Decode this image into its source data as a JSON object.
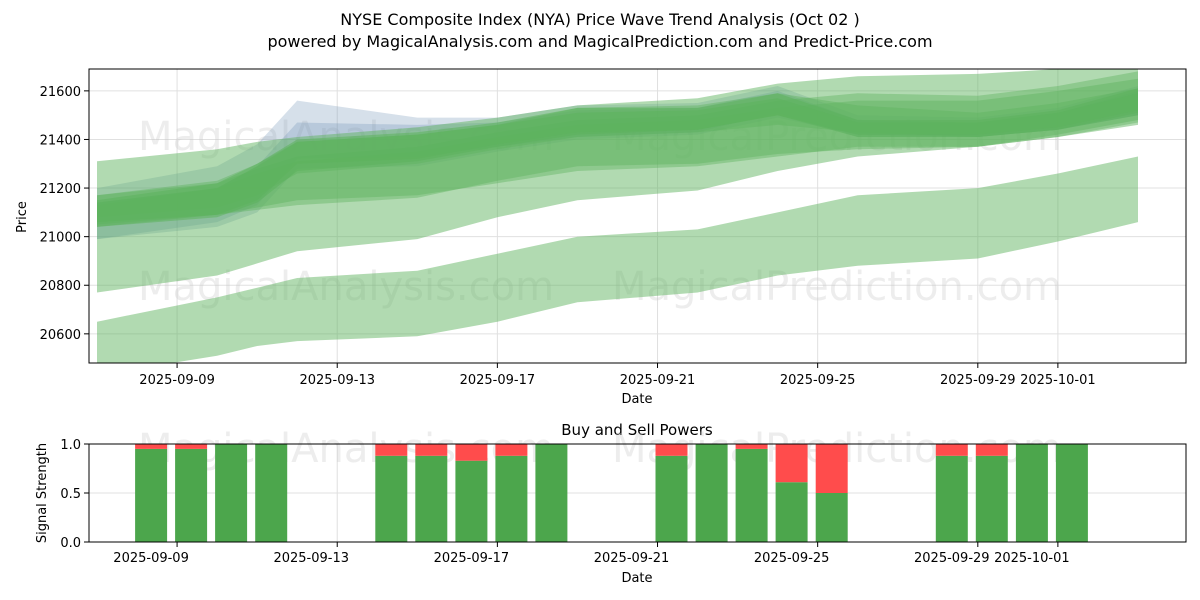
{
  "chart_data": [
    {
      "type": "area",
      "title": "NYSE Composite Index (NYA) Price Wave Trend Analysis (Oct 02 )",
      "subtitle": "powered by MagicalAnalysis.com and MagicalPrediction.com and Predict-Price.com",
      "xlabel": "Date",
      "ylabel": "Price",
      "ylim": [
        20480,
        21690
      ],
      "xlim": [
        "2025-09-06.8",
        "2025-10-04.2"
      ],
      "x_ticks": [
        "2025-09-09",
        "2025-09-13",
        "2025-09-17",
        "2025-09-21",
        "2025-09-25",
        "2025-09-29",
        "2025-10-01"
      ],
      "y_ticks": [
        20600,
        20800,
        21000,
        21200,
        21400,
        21600
      ],
      "grid": true,
      "watermarks": [
        "MagicalAnalysis.com",
        "MagicalPrediction.com"
      ],
      "band_dates": [
        "2025-09-07",
        "2025-09-10",
        "2025-09-11",
        "2025-09-12",
        "2025-09-15",
        "2025-09-17",
        "2025-09-19",
        "2025-09-22",
        "2025-09-24",
        "2025-09-26",
        "2025-09-29",
        "2025-10-01",
        "2025-10-03"
      ],
      "bands": [
        {
          "name": "wide-upper",
          "low": [
            20770,
            20840,
            20890,
            20940,
            20990,
            21080,
            21150,
            21190,
            21270,
            21330,
            21370,
            21410,
            21460
          ],
          "high": [
            21310,
            21360,
            21390,
            21410,
            21450,
            21490,
            21540,
            21570,
            21630,
            21660,
            21670,
            21690,
            21690
          ]
        },
        {
          "name": "wide-lower",
          "low": [
            20430,
            20510,
            20550,
            20570,
            20590,
            20650,
            20730,
            20770,
            20840,
            20880,
            20910,
            20980,
            21060
          ],
          "high": [
            20650,
            20750,
            20790,
            20830,
            20860,
            20930,
            21000,
            21030,
            21100,
            21170,
            21200,
            21260,
            21330
          ]
        },
        {
          "name": "mid-1",
          "low": [
            21040,
            21090,
            21120,
            21150,
            21170,
            21220,
            21270,
            21290,
            21330,
            21370,
            21370,
            21410,
            21470
          ],
          "high": [
            21130,
            21200,
            21260,
            21310,
            21350,
            21410,
            21460,
            21480,
            21530,
            21560,
            21560,
            21600,
            21650
          ]
        },
        {
          "name": "mid-2",
          "low": [
            21050,
            21090,
            21110,
            21130,
            21160,
            21230,
            21290,
            21300,
            21340,
            21360,
            21370,
            21420,
            21480
          ],
          "high": [
            21170,
            21220,
            21280,
            21330,
            21370,
            21430,
            21480,
            21500,
            21560,
            21590,
            21580,
            21620,
            21680
          ]
        },
        {
          "name": "mid-3",
          "low": [
            21080,
            21120,
            21170,
            21260,
            21300,
            21360,
            21410,
            21430,
            21460,
            21430,
            21410,
            21440,
            21500
          ],
          "high": [
            21170,
            21230,
            21300,
            21390,
            21420,
            21460,
            21530,
            21540,
            21590,
            21540,
            21510,
            21550,
            21610
          ]
        },
        {
          "name": "core-1",
          "low": [
            21040,
            21080,
            21140,
            21270,
            21310,
            21370,
            21420,
            21440,
            21500,
            21410,
            21410,
            21440,
            21510
          ],
          "high": [
            21150,
            21220,
            21300,
            21400,
            21430,
            21470,
            21530,
            21530,
            21590,
            21480,
            21480,
            21520,
            21610
          ]
        },
        {
          "name": "core-2",
          "low": [
            21060,
            21090,
            21150,
            21300,
            21320,
            21380,
            21430,
            21440,
            21500,
            21420,
            21420,
            21450,
            21520
          ],
          "high": [
            21140,
            21200,
            21290,
            21390,
            21420,
            21460,
            21510,
            21520,
            21570,
            21470,
            21470,
            21510,
            21590
          ]
        }
      ],
      "ghost_bands": [
        {
          "name": "ghost-1",
          "low": [
            20990,
            21060,
            21130,
            21320,
            21330,
            21370,
            21410,
            21430,
            21510,
            21410,
            21410,
            21440,
            21500
          ],
          "high": [
            21200,
            21290,
            21380,
            21560,
            21490,
            21490,
            21540,
            21550,
            21620,
            21500,
            21490,
            21530,
            21620
          ]
        },
        {
          "name": "ghost-2",
          "low": [
            20990,
            21040,
            21100,
            21280,
            21290,
            21350,
            21400,
            21420,
            21490,
            21420,
            21410,
            21440,
            21500
          ],
          "high": [
            21140,
            21200,
            21290,
            21470,
            21460,
            21470,
            21520,
            21530,
            21600,
            21480,
            21470,
            21510,
            21600
          ]
        }
      ]
    },
    {
      "type": "bar",
      "title": "Buy and Sell Powers",
      "xlabel": "Date",
      "ylabel": "Signal Strength",
      "ylim": [
        0,
        1
      ],
      "y_ticks": [
        "0.0",
        "0.5",
        "1.0"
      ],
      "x_ticks": [
        "2025-09-09",
        "2025-09-13",
        "2025-09-17",
        "2025-09-21",
        "2025-09-25",
        "2025-09-29",
        "2025-10-01"
      ],
      "dates": [
        "2025-09-09",
        "2025-09-10",
        "2025-09-11",
        "2025-09-12",
        "2025-09-15",
        "2025-09-16",
        "2025-09-17",
        "2025-09-18",
        "2025-09-19",
        "2025-09-22",
        "2025-09-23",
        "2025-09-24",
        "2025-09-25",
        "2025-09-26",
        "2025-09-29",
        "2025-09-30",
        "2025-10-01",
        "2025-10-02"
      ],
      "buy": [
        0.95,
        0.95,
        1.0,
        1.0,
        0.88,
        0.88,
        0.83,
        0.88,
        1.0,
        0.88,
        1.0,
        0.95,
        0.61,
        0.5,
        0.88,
        0.88,
        1.0,
        1.0
      ],
      "sell": [
        0.05,
        0.05,
        0.0,
        0.0,
        0.12,
        0.12,
        0.17,
        0.12,
        0.0,
        0.12,
        0.0,
        0.05,
        0.39,
        0.5,
        0.12,
        0.12,
        0.0,
        0.0
      ],
      "colors": {
        "buy": "#4ca64c",
        "sell": "#ff4c4c"
      },
      "watermarks": [
        "MagicalAnalysis.com",
        "MagicalPrediction.com"
      ]
    }
  ],
  "colors": {
    "band_green": "#5cb25c",
    "ghost_blue": "#6a8fb5",
    "frame": "#000000"
  }
}
